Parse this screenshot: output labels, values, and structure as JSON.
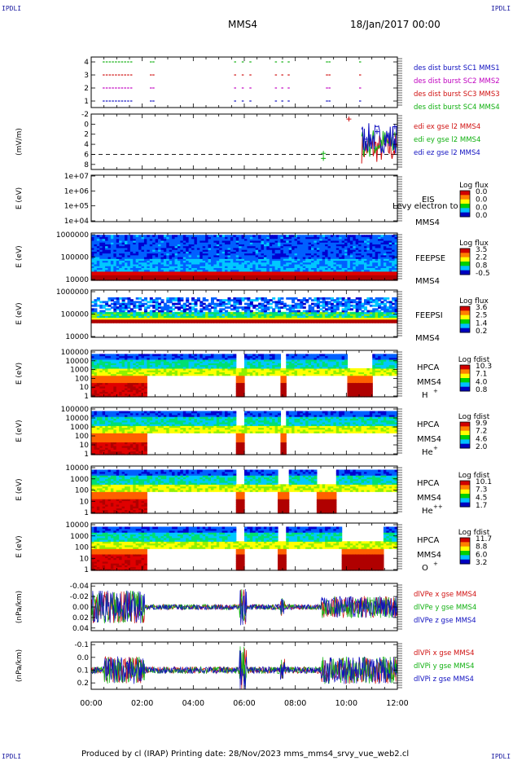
{
  "corner_label": "IPDLI",
  "header": {
    "mission": "MMS4",
    "date_time": "18/Jan/2017 00:00"
  },
  "footer": {
    "text": "Produced by cl (IRAP)   Printing date: 28/Nov/2023   mms_mms4_srvy_vue_web2.cl"
  },
  "chart_data": [
    {
      "id": "burst",
      "type": "scatter",
      "yticks": [
        "1",
        "2",
        "3",
        "4"
      ],
      "xlim": [
        "00:00",
        "12:00"
      ],
      "legend": [
        {
          "text": "des dist burst SC1 MMS1",
          "color": "#1010c0"
        },
        {
          "text": "des dist burst SC2 MMS2",
          "color": "#c000c0"
        },
        {
          "text": "des dist burst SC3 MMS3",
          "color": "#d01010"
        },
        {
          "text": "des dist burst SC4 MMS4",
          "color": "#10b010"
        }
      ]
    },
    {
      "id": "edi",
      "type": "line",
      "ylabel": "(mV/m)",
      "yticks": [
        "-2",
        "0",
        "2",
        "4",
        "6",
        "8"
      ],
      "ylim": [
        -3,
        8
      ],
      "legend": [
        {
          "text": "edi ex gse l2 MMS4",
          "color": "#d01010"
        },
        {
          "text": "edi ey gse l2 MMS4",
          "color": "#10b010"
        },
        {
          "text": "edi ez gse l2 MMS4",
          "color": "#1010c0"
        }
      ]
    },
    {
      "id": "eis",
      "type": "heatmap",
      "ylabel": "E (eV)",
      "yticks": [
        "1e+04",
        "1e+05",
        "1e+06",
        "1e+07"
      ],
      "instrument": "EIS",
      "overlay": "Levy electron to",
      "sc": "MMS4",
      "cbar_title": "Log flux",
      "cbar_ticks": [
        "0.0",
        "0.0",
        "0.0",
        "0.0"
      ]
    },
    {
      "id": "feepse",
      "type": "heatmap",
      "ylabel": "E (eV)",
      "yticks": [
        "10000",
        "100000",
        "1000000"
      ],
      "instrument": "FEEPSE",
      "sc": "MMS4",
      "cbar_title": "Log flux",
      "cbar_ticks": [
        "3.5",
        "2.2",
        "0.8",
        "-0.5"
      ]
    },
    {
      "id": "feepsi",
      "type": "heatmap",
      "ylabel": "E (eV)",
      "yticks": [
        "10000",
        "100000",
        "1000000"
      ],
      "instrument": "FEEPSI",
      "sc": "MMS4",
      "cbar_title": "Log flux",
      "cbar_ticks": [
        "3.6",
        "2.5",
        "1.4",
        "0.2"
      ]
    },
    {
      "id": "hpca_h",
      "type": "heatmap",
      "ylabel": "E (eV)",
      "yticks": [
        "1",
        "10",
        "100",
        "1000",
        "10000",
        "100000"
      ],
      "instrument": "HPCA",
      "sc": "MMS4",
      "species": "H",
      "charge": "+",
      "cbar_title": "Log fdist",
      "cbar_ticks": [
        "10.3",
        "7.1",
        "4.0",
        "0.8"
      ]
    },
    {
      "id": "hpca_he",
      "type": "heatmap",
      "ylabel": "E (eV)",
      "yticks": [
        "1",
        "10",
        "100",
        "1000",
        "10000",
        "100000"
      ],
      "instrument": "HPCA",
      "sc": "MMS4",
      "species": "He",
      "charge": "+",
      "cbar_title": "Log fdist",
      "cbar_ticks": [
        "9.9",
        "7.2",
        "4.6",
        "2.0"
      ]
    },
    {
      "id": "hpca_hepp",
      "type": "heatmap",
      "ylabel": "E (eV)",
      "yticks": [
        "1",
        "10",
        "100",
        "1000",
        "10000"
      ],
      "instrument": "HPCA",
      "sc": "MMS4",
      "species": "He",
      "charge": "++",
      "cbar_title": "Log fdist",
      "cbar_ticks": [
        "10.1",
        "7.3",
        "4.5",
        "1.7"
      ]
    },
    {
      "id": "hpca_o",
      "type": "heatmap",
      "ylabel": "E (eV)",
      "yticks": [
        "1",
        "10",
        "100",
        "1000",
        "10000"
      ],
      "instrument": "HPCA",
      "sc": "MMS4",
      "species": "O",
      "charge": "+",
      "cbar_title": "Log fdist",
      "cbar_ticks": [
        "11.7",
        "8.8",
        "6.0",
        "3.2"
      ]
    },
    {
      "id": "dpe",
      "type": "line",
      "ylabel": "(nPa/km)",
      "yticks": [
        "-0.04",
        "-0.02",
        "0.00",
        "0.02",
        "0.04"
      ],
      "ylim": [
        -0.045,
        0.045
      ],
      "legend": [
        {
          "text": "dlVPe x gse MMS4",
          "color": "#d01010"
        },
        {
          "text": "dlVPe y gse MMS4",
          "color": "#10b010"
        },
        {
          "text": "dlVPe z gse MMS4",
          "color": "#1010c0"
        }
      ]
    },
    {
      "id": "dpi",
      "type": "line",
      "ylabel": "(nPa/km)",
      "yticks": [
        "-0.1",
        "0.0",
        "0.1",
        "0.2"
      ],
      "ylim": [
        -0.15,
        0.22
      ],
      "legend": [
        {
          "text": "dlVPi x gse MMS4",
          "color": "#d01010"
        },
        {
          "text": "dlVPi y gse MMS4",
          "color": "#10b010"
        },
        {
          "text": "dlVPi z gse MMS4",
          "color": "#1010c0"
        }
      ],
      "xticks": [
        "00:00",
        "02:00",
        "04:00",
        "06:00",
        "08:00",
        "10:00",
        "12:00"
      ]
    }
  ]
}
